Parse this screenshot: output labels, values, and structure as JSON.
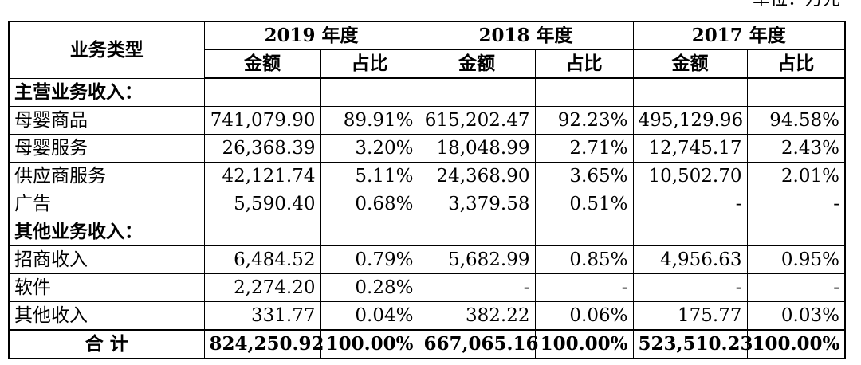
{
  "unit_note": "单位：万元",
  "header": {
    "type_label": "业务类型",
    "years": [
      "2019 年度",
      "2018 年度",
      "2017 年度"
    ],
    "amount_label": "金额",
    "ratio_label": "占比"
  },
  "rows": [
    {
      "kind": "section",
      "label": "主营业务收入：",
      "cells": [
        "",
        "",
        "",
        "",
        "",
        ""
      ]
    },
    {
      "kind": "item",
      "label": "母婴商品",
      "cells": [
        "741,079.90",
        "89.91%",
        "615,202.47",
        "92.23%",
        "495,129.96",
        "94.58%"
      ]
    },
    {
      "kind": "item",
      "label": "母婴服务",
      "cells": [
        "26,368.39",
        "3.20%",
        "18,048.99",
        "2.71%",
        "12,745.17",
        "2.43%"
      ]
    },
    {
      "kind": "item",
      "label": "供应商服务",
      "cells": [
        "42,121.74",
        "5.11%",
        "24,368.90",
        "3.65%",
        "10,502.70",
        "2.01%"
      ]
    },
    {
      "kind": "item",
      "label": "广告",
      "cells": [
        "5,590.40",
        "0.68%",
        "3,379.58",
        "0.51%",
        "-",
        "-"
      ]
    },
    {
      "kind": "section",
      "label": "其他业务收入：",
      "cells": [
        "",
        "",
        "",
        "",
        "",
        ""
      ]
    },
    {
      "kind": "item",
      "label": "招商收入",
      "cells": [
        "6,484.52",
        "0.79%",
        "5,682.99",
        "0.85%",
        "4,956.63",
        "0.95%"
      ]
    },
    {
      "kind": "item",
      "label": "软件",
      "cells": [
        "2,274.20",
        "0.28%",
        "-",
        "-",
        "-",
        "-"
      ]
    },
    {
      "kind": "item",
      "label": "其他收入",
      "cells": [
        "331.77",
        "0.04%",
        "382.22",
        "0.06%",
        "175.77",
        "0.03%"
      ]
    },
    {
      "kind": "total",
      "label": "合  计",
      "cells": [
        "824,250.92",
        "100.00%",
        "667,065.16",
        "100.00%",
        "523,510.23",
        "100.00%"
      ]
    }
  ]
}
